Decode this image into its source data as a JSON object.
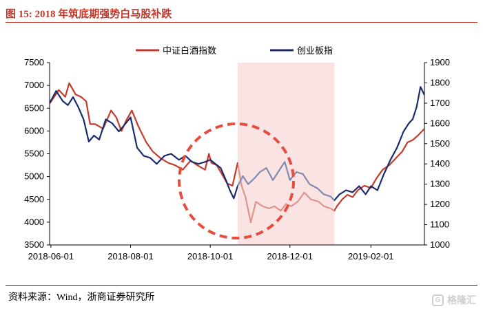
{
  "figure": {
    "title": "图 15: 2018 年筑底期强势白马股补跌",
    "source": "资料来源：Wind，浙商证券研究所",
    "watermark": "格隆汇",
    "title_color": "#c0392b"
  },
  "chart_data": {
    "type": "line",
    "title": "",
    "xlabel": "",
    "ylabel": "",
    "x_ticks": [
      "2018-06-01",
      "2018-08-01",
      "2018-10-01",
      "2018-12-01",
      "2019-02-01"
    ],
    "x_range": [
      "2018-05-31",
      "2019-03-14"
    ],
    "left_axis": {
      "range": [
        3500,
        7500
      ],
      "ticks": [
        "3500",
        "4000",
        "4500",
        "5000",
        "5500",
        "6000",
        "6500",
        "7000",
        "7500"
      ]
    },
    "right_axis": {
      "range": [
        1000,
        1900
      ],
      "ticks": [
        "1000",
        "1100",
        "1200",
        "1300",
        "1400",
        "1500",
        "1600",
        "1700",
        "1800",
        "1900"
      ]
    },
    "grid": false,
    "legend_position": "top",
    "shaded_region": {
      "start": "2018-10-22",
      "end": "2019-01-04",
      "color": "#f9e3e3"
    },
    "annotation": {
      "shape": "dashed-circle",
      "center": "2018-10-21",
      "color": "#e74c3c"
    },
    "series": [
      {
        "name": "中证白酒指数",
        "axis": "left",
        "color": "#c8392b",
        "x": [
          "2018-05-31",
          "2018-06-07",
          "2018-06-12",
          "2018-06-15",
          "2018-06-20",
          "2018-06-24",
          "2018-06-28",
          "2018-07-01",
          "2018-07-05",
          "2018-07-11",
          "2018-07-17",
          "2018-07-21",
          "2018-07-25",
          "2018-07-29",
          "2018-08-02",
          "2018-08-07",
          "2018-08-13",
          "2018-08-18",
          "2018-08-24",
          "2018-08-30",
          "2018-09-04",
          "2018-09-10",
          "2018-09-16",
          "2018-09-21",
          "2018-09-27",
          "2018-09-30",
          "2018-10-02",
          "2018-10-06",
          "2018-10-10",
          "2018-10-14",
          "2018-10-18",
          "2018-10-22",
          "2018-10-25",
          "2018-10-28",
          "2018-11-01",
          "2018-11-05",
          "2018-11-10",
          "2018-11-15",
          "2018-11-19",
          "2018-11-24",
          "2018-11-28",
          "2018-12-02",
          "2018-12-07",
          "2018-12-12",
          "2018-12-17",
          "2018-12-23",
          "2018-12-27",
          "2019-01-01",
          "2019-01-04",
          "2019-01-06",
          "2019-01-10",
          "2019-01-14",
          "2019-01-18",
          "2019-01-22",
          "2019-01-27",
          "2019-02-01",
          "2019-02-05",
          "2019-02-10",
          "2019-02-15",
          "2019-02-20",
          "2019-02-25",
          "2019-03-01",
          "2019-03-05",
          "2019-03-09",
          "2019-03-14"
        ],
        "values": [
          6600,
          6900,
          6750,
          7050,
          6800,
          6750,
          6650,
          6150,
          6150,
          6050,
          6450,
          6300,
          6000,
          6250,
          6450,
          6100,
          5750,
          5550,
          5400,
          5300,
          5250,
          5150,
          5350,
          5250,
          5150,
          5500,
          5300,
          5250,
          5050,
          4850,
          4800,
          5300,
          4800,
          4550,
          4000,
          4450,
          4350,
          4300,
          4350,
          4250,
          4400,
          4350,
          4450,
          4650,
          4500,
          4450,
          4350,
          4300,
          4250,
          4350,
          4500,
          4600,
          4550,
          4700,
          4800,
          4750,
          4950,
          5150,
          5250,
          5400,
          5550,
          5750,
          5800,
          5900,
          6050
        ]
      },
      {
        "name": "创业板指",
        "axis": "right",
        "color": "#1b2a6b",
        "x": [
          "2018-05-31",
          "2018-06-05",
          "2018-06-10",
          "2018-06-14",
          "2018-06-18",
          "2018-06-22",
          "2018-06-26",
          "2018-06-30",
          "2018-07-04",
          "2018-07-08",
          "2018-07-13",
          "2018-07-18",
          "2018-07-23",
          "2018-07-27",
          "2018-08-01",
          "2018-08-06",
          "2018-08-11",
          "2018-08-16",
          "2018-08-21",
          "2018-08-27",
          "2018-09-01",
          "2018-09-07",
          "2018-09-12",
          "2018-09-17",
          "2018-09-22",
          "2018-09-27",
          "2018-10-01",
          "2018-10-05",
          "2018-10-09",
          "2018-10-13",
          "2018-10-16",
          "2018-10-19",
          "2018-10-22",
          "2018-10-26",
          "2018-10-30",
          "2018-11-04",
          "2018-11-08",
          "2018-11-13",
          "2018-11-18",
          "2018-11-22",
          "2018-11-27",
          "2018-12-01",
          "2018-12-06",
          "2018-12-11",
          "2018-12-16",
          "2018-12-22",
          "2018-12-27",
          "2019-01-01",
          "2019-01-04",
          "2019-01-08",
          "2019-01-13",
          "2019-01-18",
          "2019-01-23",
          "2019-01-28",
          "2019-02-01",
          "2019-02-06",
          "2019-02-11",
          "2019-02-16",
          "2019-02-21",
          "2019-02-26",
          "2019-03-02",
          "2019-03-05",
          "2019-03-08",
          "2019-03-11",
          "2019-03-14"
        ],
        "values": [
          1700,
          1760,
          1710,
          1690,
          1730,
          1680,
          1620,
          1510,
          1540,
          1520,
          1620,
          1600,
          1560,
          1590,
          1630,
          1480,
          1440,
          1430,
          1400,
          1440,
          1450,
          1420,
          1440,
          1410,
          1400,
          1410,
          1420,
          1400,
          1380,
          1320,
          1270,
          1230,
          1290,
          1340,
          1300,
          1330,
          1360,
          1380,
          1320,
          1360,
          1410,
          1320,
          1360,
          1350,
          1300,
          1280,
          1250,
          1240,
          1220,
          1250,
          1270,
          1260,
          1290,
          1250,
          1290,
          1270,
          1350,
          1420,
          1480,
          1560,
          1600,
          1620,
          1680,
          1780,
          1740
        ]
      }
    ]
  }
}
